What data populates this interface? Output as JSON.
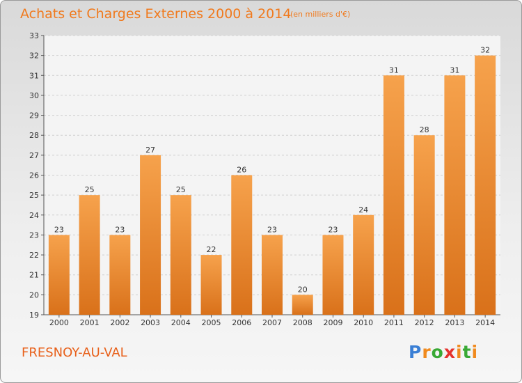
{
  "chart_data": {
    "type": "bar",
    "title": "Achats et Charges Externes 2000 à 2014",
    "subtitle": "(en milliers d'€)",
    "categories": [
      "2000",
      "2001",
      "2002",
      "2003",
      "2004",
      "2005",
      "2006",
      "2007",
      "2008",
      "2009",
      "2010",
      "2011",
      "2012",
      "2013",
      "2014"
    ],
    "values": [
      23,
      25,
      23,
      27,
      25,
      22,
      26,
      23,
      20,
      23,
      24,
      31,
      28,
      31,
      32
    ],
    "ylim": [
      19,
      33
    ],
    "yticks": [
      19,
      20,
      21,
      22,
      23,
      24,
      25,
      26,
      27,
      28,
      29,
      30,
      31,
      32,
      33
    ],
    "grid": true,
    "bar_color": "#f0882a"
  },
  "place_name": "FRESNOY-AU-VAL",
  "logo": {
    "letters": [
      "P",
      "r",
      "o",
      "x",
      "i",
      "t",
      "i"
    ],
    "colors": [
      "#3a7fd5",
      "#f08a1e",
      "#39a935",
      "#e5322d",
      "#f08a1e",
      "#39a935",
      "#f08a1e"
    ]
  }
}
